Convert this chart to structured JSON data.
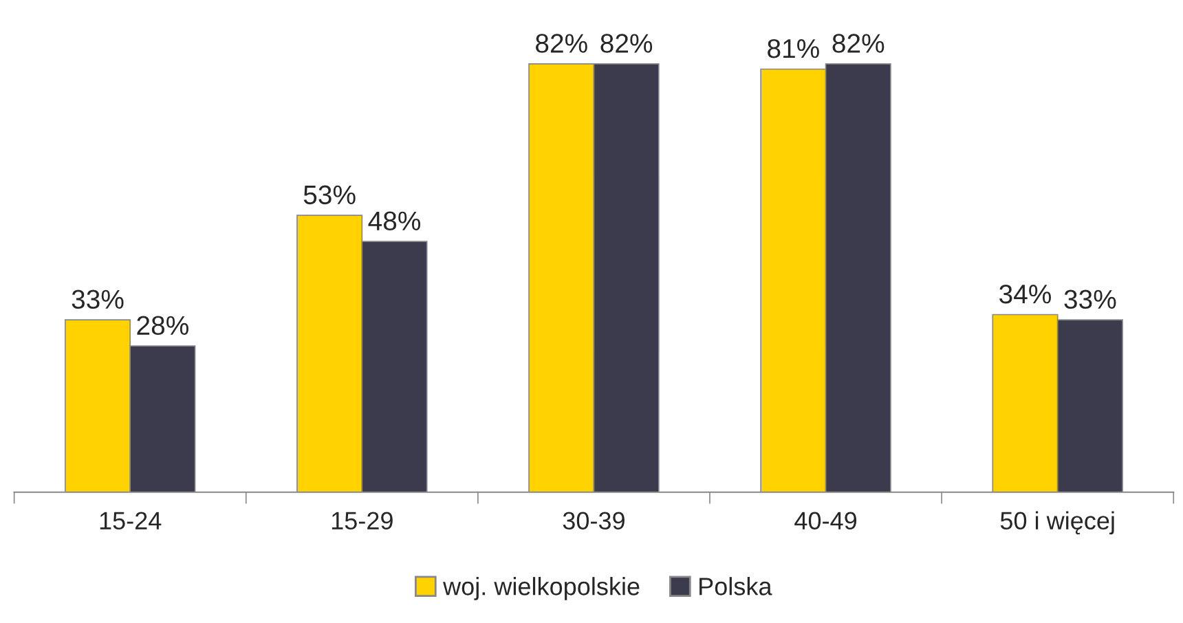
{
  "chart_data": {
    "type": "bar",
    "categories": [
      "15-24",
      "15-29",
      "30-39",
      "40-49",
      "50 i więcej"
    ],
    "series": [
      {
        "name": "woj. wielkopolskie",
        "color": "#ffd200",
        "values": [
          33,
          53,
          82,
          81,
          34
        ],
        "value_labels": [
          "33%",
          "53%",
          "82%",
          "81%",
          "34%"
        ]
      },
      {
        "name": "Polska",
        "color": "#3b3b4d",
        "values": [
          28,
          48,
          82,
          82,
          33
        ],
        "value_labels": [
          "28%",
          "48%",
          "82%",
          "82%",
          "33%"
        ]
      }
    ],
    "legend": "bottom",
    "grid": false
  }
}
